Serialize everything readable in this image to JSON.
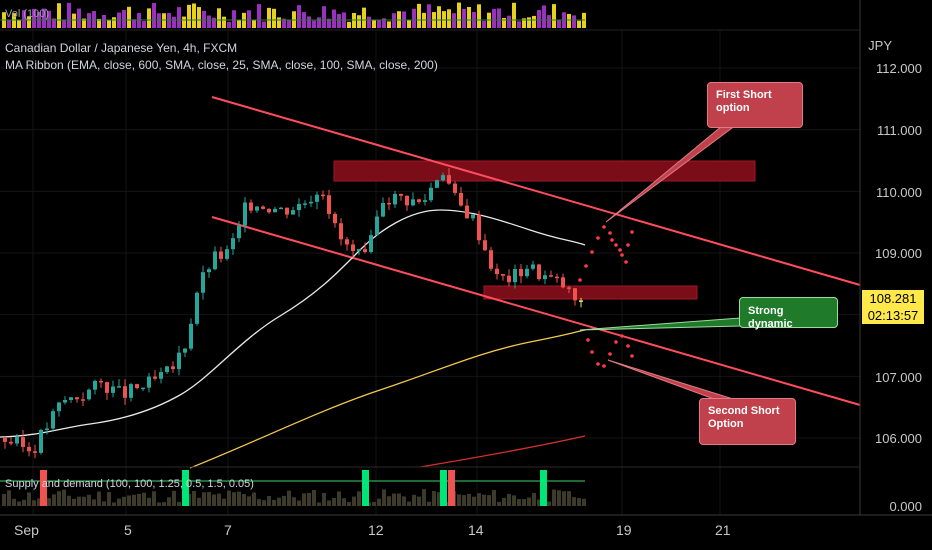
{
  "header": {
    "vol_label": "Vol (100)",
    "symbol_line": "Canadian Dollar / Japanese Yen, 4h, FXCM",
    "indicator_line": "MA Ribbon (EMA, close, 600, SMA, close, 25, SMA, close, 100, SMA, close, 200)"
  },
  "currency": "JPY",
  "price_axis": [
    "112.000",
    "111.000",
    "110.000",
    "109.000",
    "107.000",
    "106.000",
    "0.000"
  ],
  "last_price": "108.281",
  "countdown": "02:13:57",
  "time_axis": [
    "Sep",
    "5",
    "7",
    "12",
    "14",
    "19",
    "21"
  ],
  "lower_pane_label": "Supply and demand (100, 100, 1.25, 0.5, 1.5, 0.05)",
  "annotations": {
    "first_short": "First Short option",
    "second_short": "Second Short Option",
    "strong_dynamic": "Strong dynamic"
  },
  "colors": {
    "up": "#26a69a",
    "down": "#ef5350",
    "channel": "#ff4d5e",
    "zone": "#7a0d18",
    "sma_fast": "#e8e8e8",
    "sma_slow": "#f2c94c",
    "sma_long": "#d8302b",
    "vol_up": "#e6d21c",
    "vol_down": "#9b2fbf"
  }
}
